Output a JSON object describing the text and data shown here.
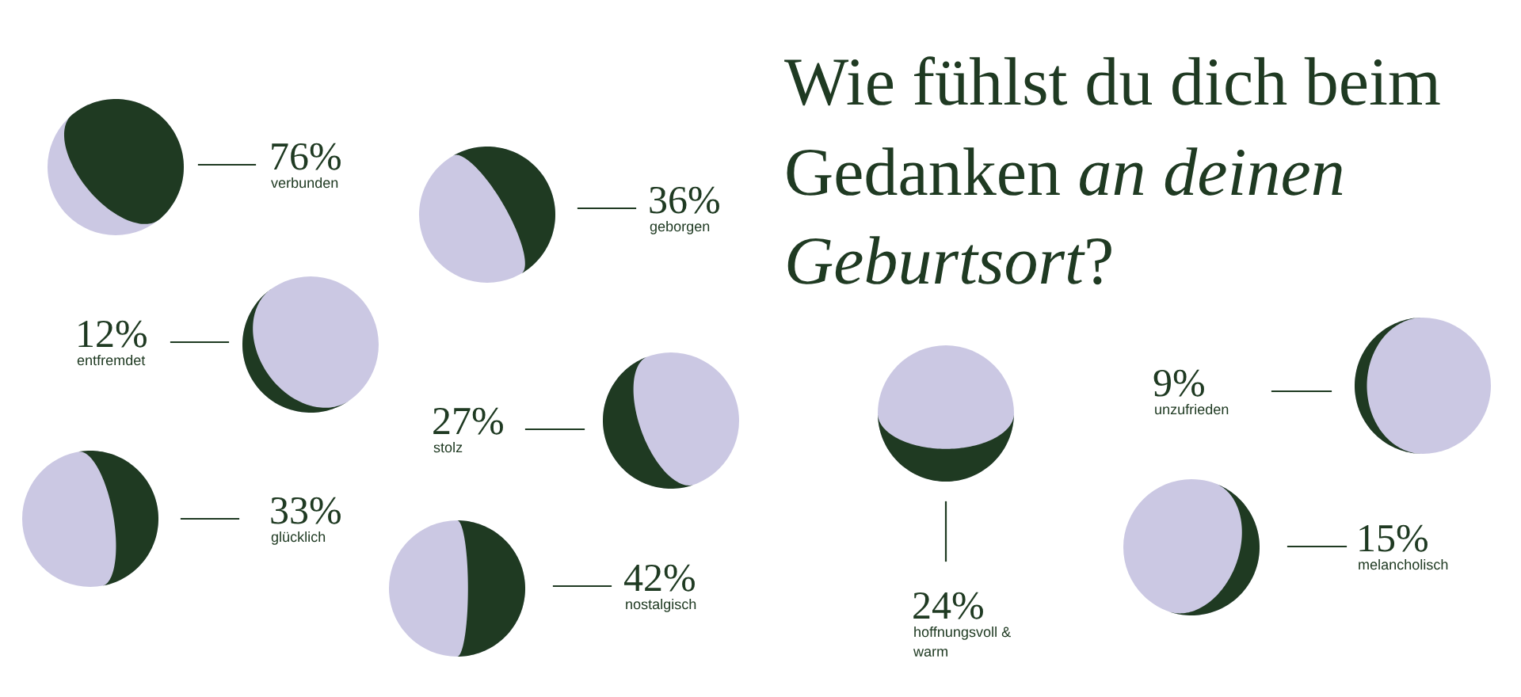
{
  "chart_data": {
    "type": "other",
    "title": "Wie fühlst du dich beim Gedanken an deinen Geburtsort?",
    "categories": [
      "verbunden",
      "geborgen",
      "entfremdet",
      "stolz",
      "glücklich",
      "nostalgisch",
      "hoffnungsvoll &\nwarm",
      "unzufrieden",
      "melancholisch"
    ],
    "values": [
      76,
      36,
      12,
      27,
      33,
      42,
      24,
      9,
      15
    ],
    "value_labels": [
      "76%",
      "36%",
      "12%",
      "27%",
      "33%",
      "42%",
      "24%",
      "9%",
      "15%"
    ],
    "color": "#1f3a22"
  }
}
